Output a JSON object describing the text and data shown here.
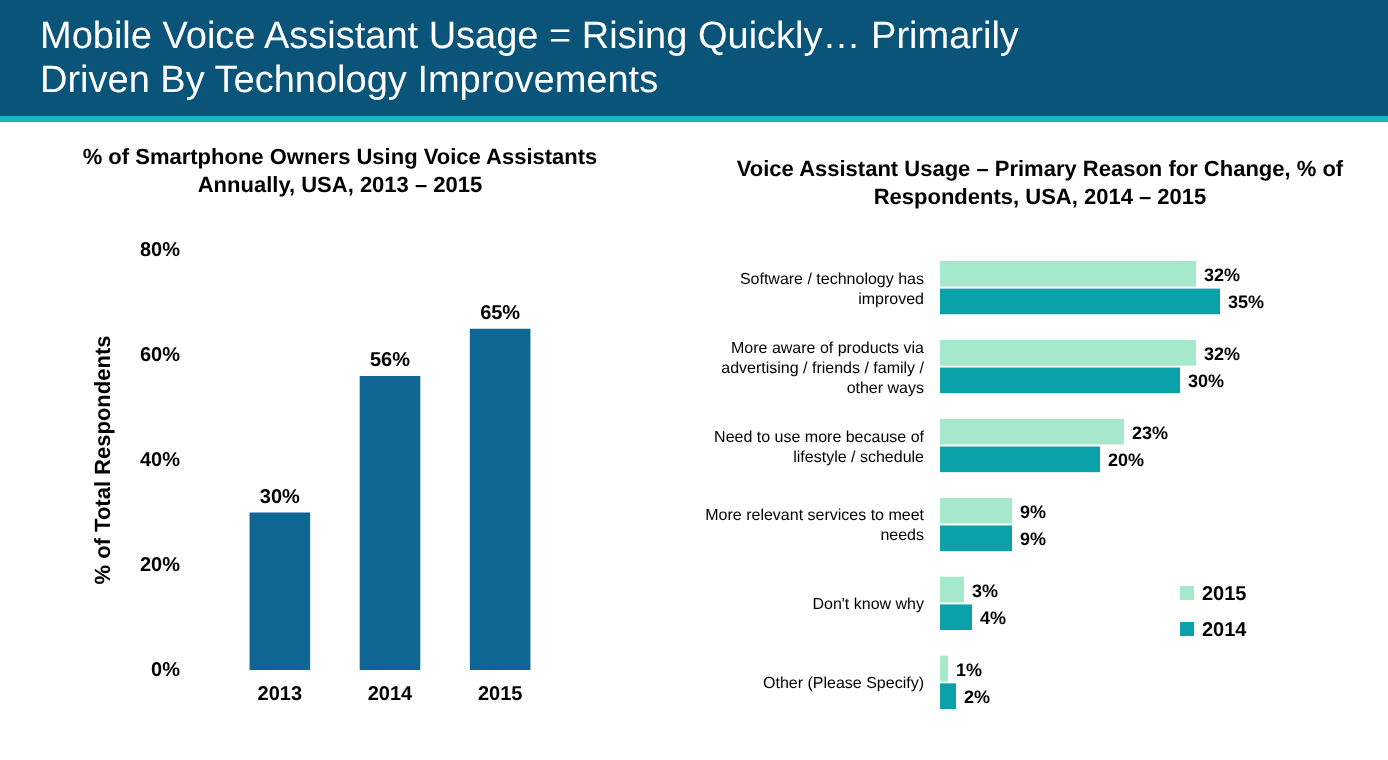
{
  "chart_data": [
    {
      "type": "bar",
      "title": "Mobile Voice Assistant Usage = Rising Quickly… Primarily Driven By Technology Improvements",
      "subtitle": "% of Smartphone Owners Using Voice Assistants Annually, USA, 2013 – 2015",
      "ylabel": "% of Total Respondents",
      "categories": [
        "2013",
        "2014",
        "2015"
      ],
      "values": [
        30,
        56,
        65
      ],
      "value_labels": [
        "30%",
        "56%",
        "65%"
      ],
      "color": "#0f6694",
      "ylim": [
        0,
        80
      ],
      "yticks": [
        {
          "value": 0,
          "label": "0%"
        },
        {
          "value": 20,
          "label": "20%"
        },
        {
          "value": 40,
          "label": "40%"
        },
        {
          "value": 60,
          "label": "60%"
        },
        {
          "value": 80,
          "label": "80%"
        }
      ]
    },
    {
      "type": "bar",
      "orientation": "horizontal",
      "title": "Voice Assistant Usage – Primary Reason for Change, % of Respondents, USA, 2014 – 2015",
      "categories": [
        "Software / technology has improved",
        "More aware of products via advertising / friends / family / other ways",
        "Need to use more because of lifestyle / schedule",
        "More relevant services to meet needs",
        "Don't know why",
        "Other (Please Specify)"
      ],
      "series": [
        {
          "name": "2015",
          "color": "#a6e8cc",
          "values": [
            32,
            32,
            23,
            9,
            3,
            1
          ],
          "value_labels": [
            "32%",
            "32%",
            "23%",
            "9%",
            "3%",
            "1%"
          ]
        },
        {
          "name": "2014",
          "color": "#0aa2a8",
          "values": [
            35,
            30,
            20,
            9,
            4,
            2
          ],
          "value_labels": [
            "35%",
            "30%",
            "20%",
            "9%",
            "4%",
            "2%"
          ]
        }
      ],
      "legend": "bottom right"
    }
  ]
}
